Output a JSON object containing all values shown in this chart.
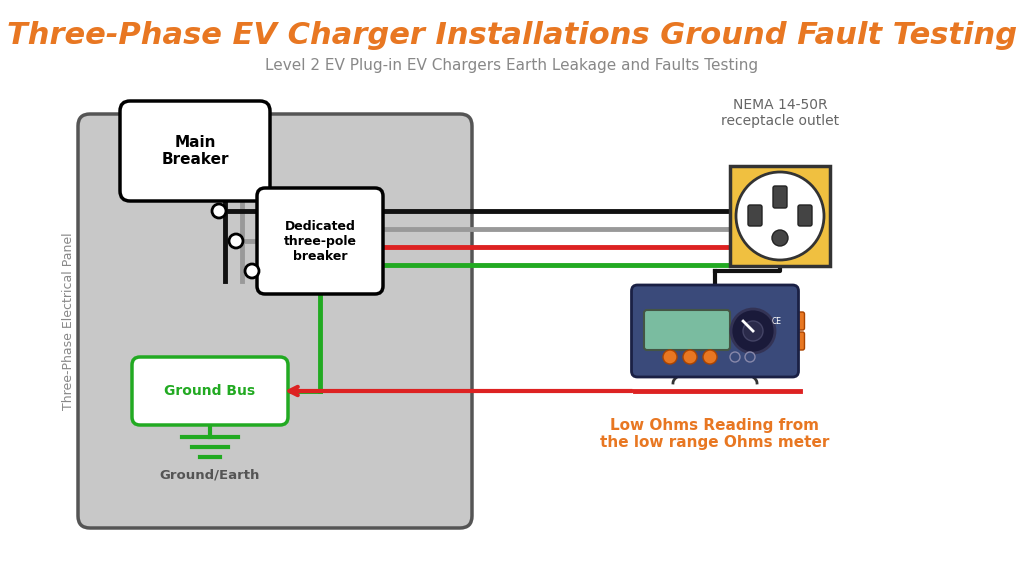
{
  "title": "Three-Phase EV Charger Installations Ground Fault Testing",
  "subtitle": "Level 2 EV Plug-in EV Chargers Earth Leakage and Faults Testing",
  "title_color": "#E87722",
  "subtitle_color": "#888888",
  "bg_color": "#FFFFFF",
  "panel_color": "#C8C8C8",
  "panel_border_color": "#555555",
  "main_breaker_label": "Main\nBreaker",
  "dedicated_breaker_label": "Dedicated\nthree-pole\nbreaker",
  "ground_bus_label": "Ground Bus",
  "ground_earth_label": "Ground/Earth",
  "nema_label": "NEMA 14-50R\nreceptacle outlet",
  "panel_side_label": "Three-Phase Electrical Panel",
  "low_ohms_label": "Low Ohms Reading from\nthe low range Ohms meter",
  "low_ohms_color": "#E87722",
  "wire_black": "#111111",
  "wire_gray": "#999999",
  "wire_red": "#DD2222",
  "wire_green": "#22AA22",
  "outlet_bg": "#F0C040",
  "outlet_face": "#FFFFFF"
}
